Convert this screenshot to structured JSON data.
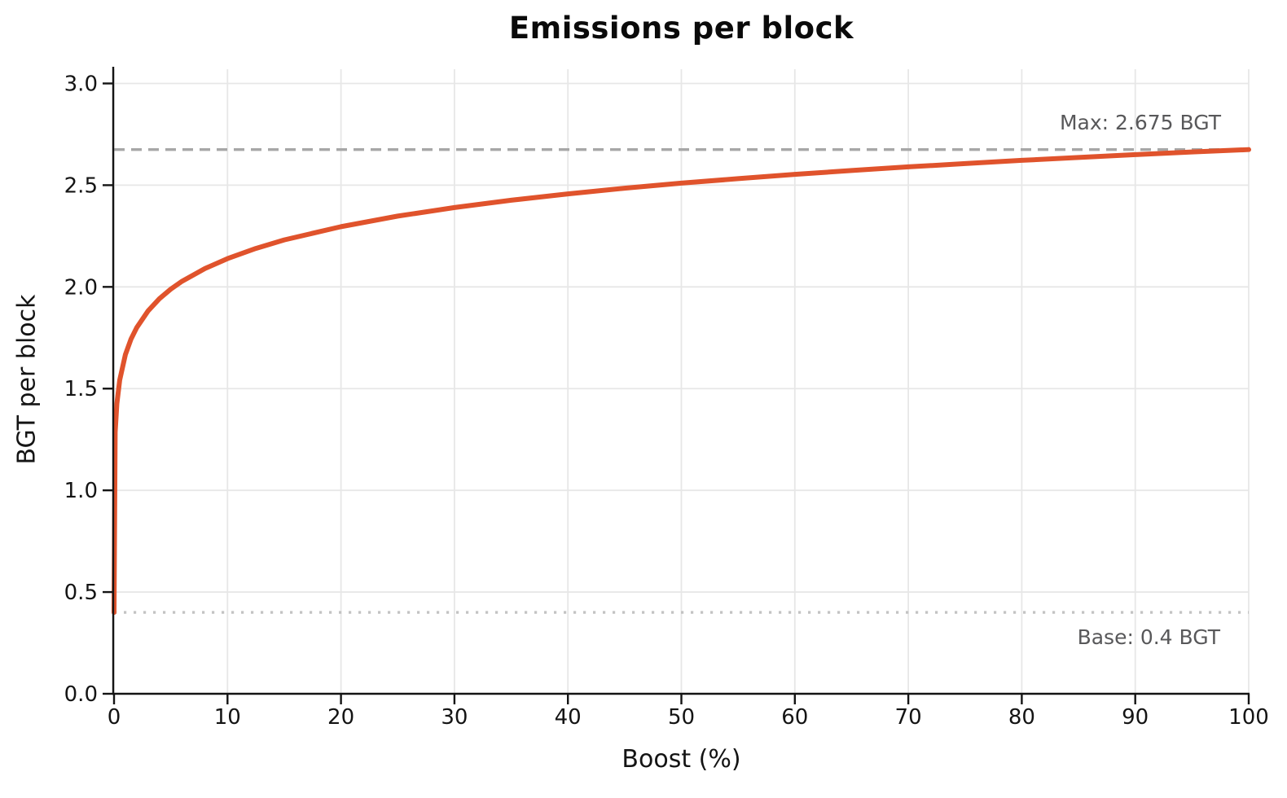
{
  "chart_data": {
    "type": "line",
    "title": "Emissions per block",
    "xlabel": "Boost (%)",
    "ylabel": "BGT per block",
    "xlim": [
      0,
      100
    ],
    "ylim": [
      0,
      3.07
    ],
    "grid": true,
    "x_ticks": [
      0,
      10,
      20,
      30,
      40,
      50,
      60,
      70,
      80,
      90,
      100
    ],
    "x_tick_labels": [
      "0",
      "10",
      "20",
      "30",
      "40",
      "50",
      "60",
      "70",
      "80",
      "90",
      "100"
    ],
    "y_ticks": [
      0.0,
      0.5,
      1.0,
      1.5,
      2.0,
      2.5,
      3.0
    ],
    "y_tick_labels": [
      "0.0",
      "0.5",
      "1.0",
      "1.5",
      "2.0",
      "2.5",
      "3.0"
    ],
    "series": [
      {
        "name": "emissions-per-block",
        "color": "#e0532c",
        "x": [
          0,
          0.1,
          0.25,
          0.5,
          1,
          1.5,
          2,
          3,
          4,
          5,
          6,
          8,
          10,
          12.5,
          15,
          20,
          25,
          30,
          35,
          40,
          45,
          50,
          55,
          60,
          65,
          70,
          75,
          80,
          85,
          90,
          95,
          100
        ],
        "y": [
          0.4,
          1.286,
          1.426,
          1.542,
          1.667,
          1.744,
          1.8,
          1.882,
          1.942,
          1.989,
          2.028,
          2.09,
          2.139,
          2.189,
          2.231,
          2.296,
          2.348,
          2.39,
          2.426,
          2.457,
          2.485,
          2.51,
          2.532,
          2.553,
          2.572,
          2.59,
          2.606,
          2.622,
          2.636,
          2.65,
          2.663,
          2.675
        ]
      }
    ],
    "reference_lines": [
      {
        "name": "max",
        "value": 2.675,
        "label": "Max: 2.675 BGT",
        "style": "dashed",
        "color": "#a7a7a7"
      },
      {
        "name": "base",
        "value": 0.4,
        "label": "Base: 0.4 BGT",
        "style": "dotted",
        "color": "#c3c3c3"
      }
    ],
    "colors": {
      "grid": "#e7e7e7",
      "axis": "#141414",
      "annotation_text": "#58585a",
      "line": "#e0532c"
    }
  }
}
